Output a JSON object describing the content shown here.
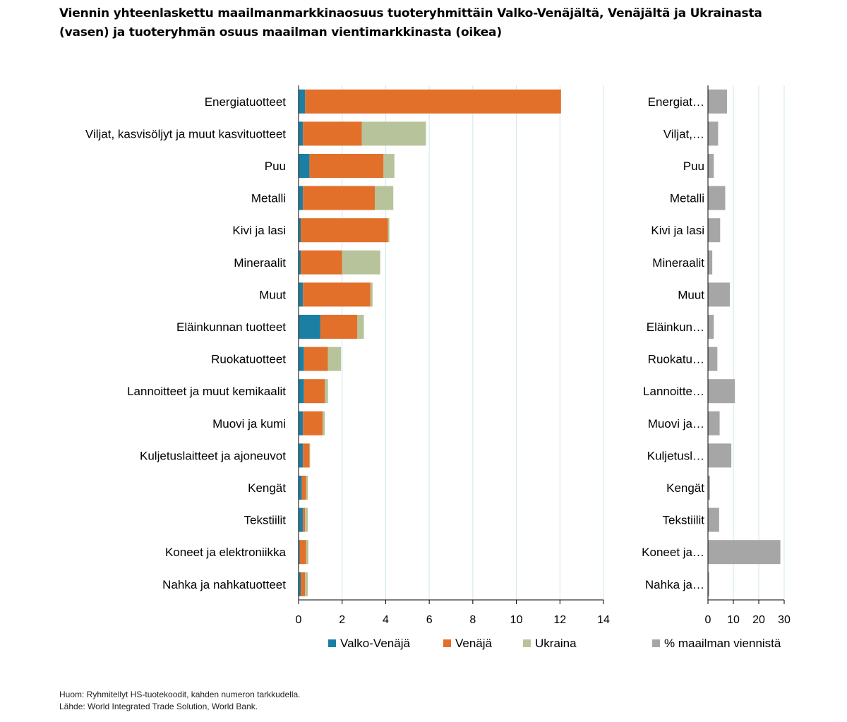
{
  "title": {
    "line1": "Viennin yhteenlaskettu maailmanmarkkinaosuus tuoteryhmittäin Valko-Venäjältä, Venäjältä ja Ukrainasta",
    "line2": "(vasen) ja tuoteryhmän osuus maailman vientimarkkinasta (oikea)"
  },
  "chart_data": [
    {
      "type": "bar",
      "orientation": "horizontal",
      "stacked": true,
      "categories": [
        "Energiatuotteet",
        "Viljat, kasvisöljyt ja muut kasvituotteet",
        "Puu",
        "Metalli",
        "Kivi ja lasi",
        "Mineraalit",
        "Muut",
        "Eläinkunnan tuotteet",
        "Ruokatuotteet",
        "Lannoitteet ja muut kemikaalit",
        "Muovi ja kumi",
        "Kuljetuslaitteet ja ajoneuvot",
        "Kengät",
        "Tekstiilit",
        "Koneet ja elektroniikka",
        "Nahka ja nahkatuotteet"
      ],
      "series": [
        {
          "name": "Valko-Venäjä",
          "color": "#1a7fa3",
          "values": [
            0.3,
            0.2,
            0.5,
            0.2,
            0.1,
            0.1,
            0.2,
            1.0,
            0.25,
            0.25,
            0.2,
            0.2,
            0.15,
            0.2,
            0.05,
            0.1
          ]
        },
        {
          "name": "Venäjä",
          "color": "#e2702a",
          "values": [
            11.75,
            2.7,
            3.4,
            3.3,
            4.0,
            1.9,
            3.1,
            1.7,
            1.1,
            0.95,
            0.9,
            0.3,
            0.2,
            0.1,
            0.3,
            0.2
          ]
        },
        {
          "name": "Ukraina",
          "color": "#b7c49b",
          "values": [
            0.0,
            2.95,
            0.5,
            0.85,
            0.07,
            1.75,
            0.1,
            0.3,
            0.6,
            0.15,
            0.1,
            0.03,
            0.08,
            0.12,
            0.1,
            0.12
          ]
        }
      ],
      "xlim": [
        0,
        14
      ],
      "xticks": [
        "0",
        "2",
        "4",
        "6",
        "8",
        "10",
        "12",
        "14"
      ],
      "grid": true,
      "legend": "bottom"
    },
    {
      "type": "bar",
      "orientation": "horizontal",
      "category_labels": [
        "Energiat…",
        "Viljat,…",
        "Puu",
        "Metalli",
        "Kivi ja lasi",
        "Mineraalit",
        "Muut",
        "Eläinkun…",
        "Ruokatu…",
        "Lannoitte…",
        "Muovi ja…",
        "Kuljetusl…",
        "Kengät",
        "Tekstiilit",
        "Koneet ja…",
        "Nahka ja…"
      ],
      "series": [
        {
          "name": "% maailman viennistä",
          "color": "#a6a6a6",
          "values": [
            7.5,
            4.0,
            2.3,
            6.8,
            4.8,
            1.7,
            8.6,
            2.3,
            3.7,
            10.6,
            4.6,
            9.2,
            0.8,
            4.4,
            28.5,
            0.5
          ]
        }
      ],
      "xlim": [
        0,
        30
      ],
      "xticks": [
        "0",
        "10",
        "20",
        "30"
      ],
      "grid": true,
      "legend": "bottom"
    }
  ],
  "footnotes": {
    "note": "Huom:  Ryhmitellyt HS-tuotekoodit,  kahden numeron  tarkkudella.",
    "source": "Lähde: World Integrated Trade Solution, World Bank."
  }
}
